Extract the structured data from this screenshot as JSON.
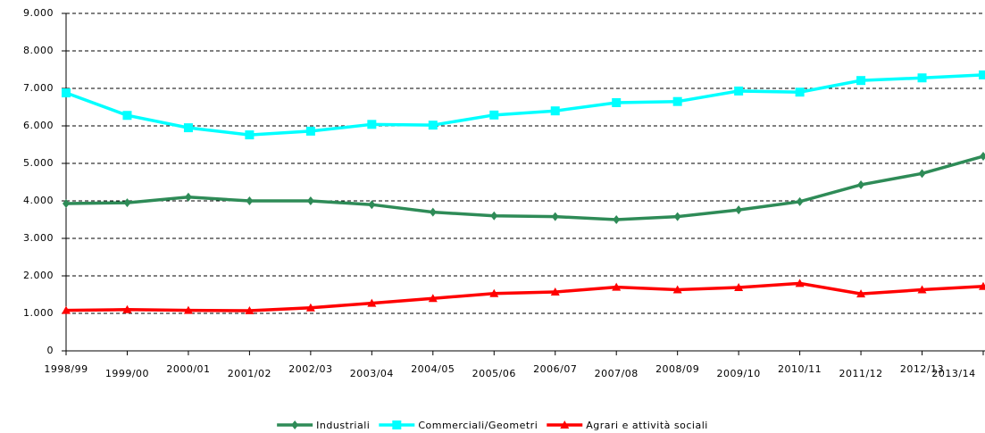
{
  "chart_data": {
    "type": "line",
    "categories": [
      "1998/99",
      "1999/00",
      "2000/01",
      "2001/02",
      "2002/03",
      "2003/04",
      "2004/05",
      "2005/06",
      "2006/07",
      "2007/08",
      "2008/09",
      "2009/10",
      "2010/11",
      "2011/12",
      "2012/13",
      "2013/14"
    ],
    "series": [
      {
        "name": "Industriali",
        "color": "#2e8b57",
        "marker": "diamond",
        "values": [
          3930,
          3950,
          4100,
          4000,
          4000,
          3900,
          3700,
          3600,
          3580,
          3500,
          3580,
          3760,
          3980,
          4430,
          4730,
          5190
        ]
      },
      {
        "name": "Commerciali/Geometri",
        "color": "#00ffff",
        "marker": "square",
        "values": [
          6880,
          6280,
          5950,
          5760,
          5860,
          6040,
          6020,
          6290,
          6400,
          6620,
          6650,
          6930,
          6900,
          7210,
          7280,
          7360
        ]
      },
      {
        "name": "Agrari e attività sociali",
        "color": "#ff0000",
        "marker": "triangle",
        "values": [
          1080,
          1100,
          1080,
          1070,
          1150,
          1270,
          1400,
          1530,
          1570,
          1700,
          1630,
          1690,
          1800,
          1520,
          1630,
          1720
        ]
      }
    ],
    "ylim": [
      0,
      9000
    ],
    "yticks": [
      0,
      {
        "value": 1000,
        "label": "1.000"
      },
      {
        "value": 2000,
        "label": "2.000"
      },
      {
        "value": 3000,
        "label": "3.000"
      },
      {
        "value": 4000,
        "label": "4.000"
      },
      {
        "value": 5000,
        "label": "5.000"
      },
      {
        "value": 6000,
        "label": "6.000"
      },
      {
        "value": 7000,
        "label": "7.000"
      },
      {
        "value": 8000,
        "label": "8.000"
      },
      {
        "value": 9000,
        "label": "9.000"
      }
    ],
    "grid": true,
    "legend": "bottom"
  }
}
